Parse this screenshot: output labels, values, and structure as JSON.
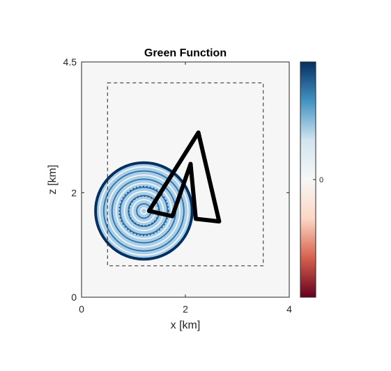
{
  "chart_data": {
    "type": "heatmap",
    "title": "Green Function",
    "xlabel": "x [km]",
    "ylabel": "z [km]",
    "xlim": [
      0,
      4
    ],
    "ylim": [
      0,
      4.5
    ],
    "y_direction": "reversed",
    "x_ticks": [
      0,
      2,
      4
    ],
    "x_tick_labels": [
      "0",
      "2",
      "4"
    ],
    "y_ticks": [
      0,
      2,
      4.5
    ],
    "y_tick_labels": [
      "0",
      "2",
      "4.5"
    ],
    "background_value": 0,
    "dashed_box": {
      "x": [
        0.5,
        3.5
      ],
      "z": [
        0.6,
        4.1
      ]
    },
    "source": {
      "x": 1.2,
      "z": 1.65,
      "radius": 0.95,
      "ring_count": 12
    },
    "polygon_outline": [
      [
        1.3,
        1.65
      ],
      [
        2.25,
        3.15
      ],
      [
        2.65,
        1.45
      ],
      [
        2.2,
        1.5
      ],
      [
        2.1,
        2.55
      ],
      [
        1.75,
        1.55
      ],
      [
        1.3,
        1.65
      ]
    ],
    "colorbar": {
      "colormap": "RdBu",
      "tick_values": [
        0
      ],
      "tick_labels": [
        "0"
      ],
      "colors": [
        "#67001f",
        "#d6604d",
        "#fbd7c4",
        "#f7f7f7",
        "#d1e5f0",
        "#4393c3",
        "#053061"
      ]
    }
  }
}
